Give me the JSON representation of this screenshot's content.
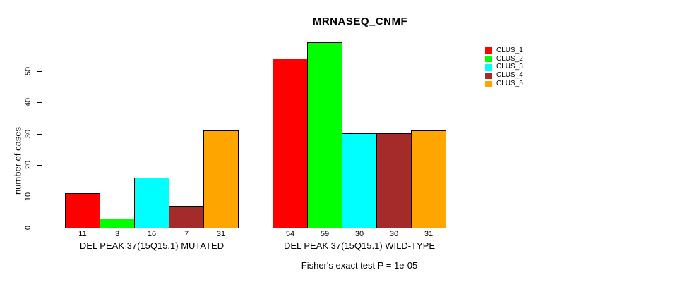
{
  "chart_data": {
    "type": "bar",
    "title": "MRNASEQ_CNMF",
    "subtitle": "Fisher's exact test P = 1e-05",
    "xlabel": "",
    "ylabel": "number of cases",
    "ylim": [
      0,
      50
    ],
    "yticks": [
      0,
      10,
      20,
      30,
      40,
      50
    ],
    "grid": false,
    "bar_value_labels": true,
    "legend_position": "top-right",
    "series": [
      {
        "name": "CLUS_1",
        "color": "#ff0000"
      },
      {
        "name": "CLUS_2",
        "color": "#00ff00"
      },
      {
        "name": "CLUS_3",
        "color": "#00ffff"
      },
      {
        "name": "CLUS_4",
        "color": "#a52a2a"
      },
      {
        "name": "CLUS_5",
        "color": "#ffa500"
      }
    ],
    "groups": [
      {
        "label": "DEL PEAK 37(15Q15.1) MUTATED",
        "values": [
          11,
          3,
          16,
          7,
          31
        ]
      },
      {
        "label": "DEL PEAK 37(15Q15.1) WILD-TYPE",
        "values": [
          54,
          59,
          30,
          30,
          31
        ]
      }
    ]
  }
}
